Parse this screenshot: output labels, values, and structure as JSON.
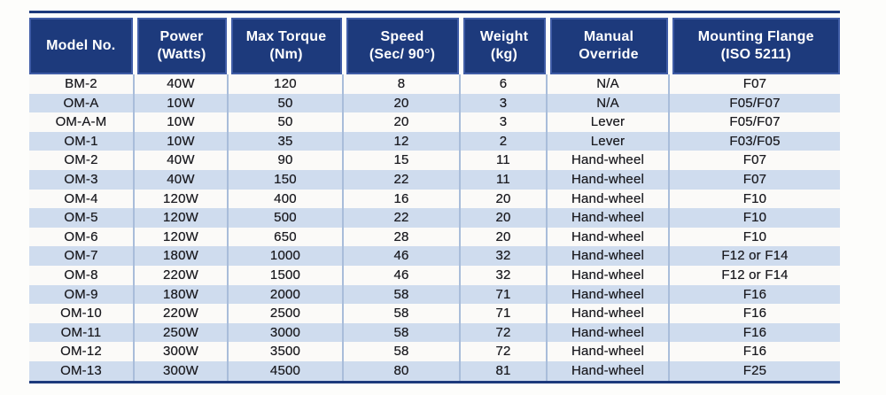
{
  "colors": {
    "header_bg": "#1d3a7c",
    "header_border": "#3f5ca6",
    "header_text": "#ffffff",
    "row_alt_bg": "#cfdcee",
    "row_bg": "#fbfaf8",
    "column_border": "#a9bdda",
    "frame_line": "#1d3a7c",
    "body_text": "#1b1b20"
  },
  "table": {
    "headers": [
      {
        "line1": "Model No.",
        "line2": ""
      },
      {
        "line1": "Power",
        "line2": "(Watts)"
      },
      {
        "line1": "Max Torque",
        "line2": "(Nm)"
      },
      {
        "line1": "Speed",
        "line2": "(Sec/ 90°)"
      },
      {
        "line1": "Weight",
        "line2": "(kg)"
      },
      {
        "line1": "Manual",
        "line2": "Override"
      },
      {
        "line1": "Mounting Flange",
        "line2": "(ISO 5211)"
      }
    ],
    "rows": [
      [
        "BM-2",
        "40W",
        "120",
        "8",
        "6",
        "N/A",
        "F07"
      ],
      [
        "OM-A",
        "10W",
        "50",
        "20",
        "3",
        "N/A",
        "F05/F07"
      ],
      [
        "OM-A-M",
        "10W",
        "50",
        "20",
        "3",
        "Lever",
        "F05/F07"
      ],
      [
        "OM-1",
        "10W",
        "35",
        "12",
        "2",
        "Lever",
        "F03/F05"
      ],
      [
        "OM-2",
        "40W",
        "90",
        "15",
        "11",
        "Hand-wheel",
        "F07"
      ],
      [
        "OM-3",
        "40W",
        "150",
        "22",
        "11",
        "Hand-wheel",
        "F07"
      ],
      [
        "OM-4",
        "120W",
        "400",
        "16",
        "20",
        "Hand-wheel",
        "F10"
      ],
      [
        "OM-5",
        "120W",
        "500",
        "22",
        "20",
        "Hand-wheel",
        "F10"
      ],
      [
        "OM-6",
        "120W",
        "650",
        "28",
        "20",
        "Hand-wheel",
        "F10"
      ],
      [
        "OM-7",
        "180W",
        "1000",
        "46",
        "32",
        "Hand-wheel",
        "F12 or F14"
      ],
      [
        "OM-8",
        "220W",
        "1500",
        "46",
        "32",
        "Hand-wheel",
        "F12 or F14"
      ],
      [
        "OM-9",
        "180W",
        "2000",
        "58",
        "71",
        "Hand-wheel",
        "F16"
      ],
      [
        "OM-10",
        "220W",
        "2500",
        "58",
        "71",
        "Hand-wheel",
        "F16"
      ],
      [
        "OM-11",
        "250W",
        "3000",
        "58",
        "72",
        "Hand-wheel",
        "F16"
      ],
      [
        "OM-12",
        "300W",
        "3500",
        "58",
        "72",
        "Hand-wheel",
        "F16"
      ],
      [
        "OM-13",
        "300W",
        "4500",
        "80",
        "81",
        "Hand-wheel",
        "F25"
      ]
    ]
  }
}
